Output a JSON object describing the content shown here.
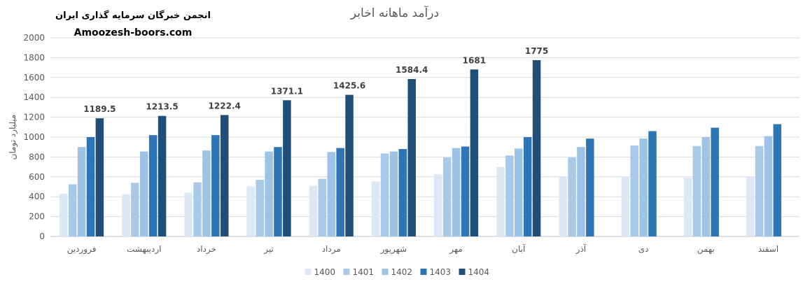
{
  "header": {
    "org_name": "انجمن خبرگان سرمایه گذاری ایران",
    "site": "Amoozesh-boors.com"
  },
  "chart_data": {
    "type": "bar",
    "title": "درآمد ماهانه اخابر",
    "ylabel": "میلیارد تومان",
    "xlabel": "",
    "ylim": [
      0,
      2000
    ],
    "yticks": [
      0,
      200,
      400,
      600,
      800,
      1000,
      1200,
      1400,
      1600,
      1800,
      2000
    ],
    "grid": true,
    "legend_position": "bottom",
    "categories": [
      "فروردین",
      "اردیبهشت",
      "خرداد",
      "تیر",
      "مرداد",
      "شهریور",
      "مهر",
      "آبان",
      "آذر",
      "دی",
      "بهمن",
      "اسفند"
    ],
    "series": [
      {
        "name": "1400",
        "color": "#dce8f5",
        "values": [
          430,
          425,
          440,
          505,
          510,
          555,
          625,
          700,
          600,
          600,
          590,
          600
        ]
      },
      {
        "name": "1401",
        "color": "#a9c9e8",
        "values": [
          525,
          540,
          545,
          570,
          580,
          835,
          795,
          815,
          795,
          915,
          910,
          910
        ]
      },
      {
        "name": "1402",
        "color": "#9dc3e6",
        "values": [
          900,
          855,
          865,
          855,
          850,
          855,
          890,
          885,
          900,
          985,
          1000,
          1010
        ]
      },
      {
        "name": "1403",
        "color": "#2e75b6",
        "values": [
          1000,
          1020,
          1020,
          900,
          890,
          880,
          905,
          1000,
          985,
          1060,
          1095,
          1130
        ]
      },
      {
        "name": "1404",
        "color": "#1f4e79",
        "values": [
          1189.5,
          1213.5,
          1222.4,
          1371.1,
          1425.6,
          1584.4,
          1681,
          1775,
          null,
          null,
          null,
          null
        ],
        "labels": [
          "1189.5",
          "1213.5",
          "1222.4",
          "1371.1",
          "1425.6",
          "1584.4",
          "1681",
          "1775",
          "",
          "",
          "",
          ""
        ]
      }
    ]
  }
}
